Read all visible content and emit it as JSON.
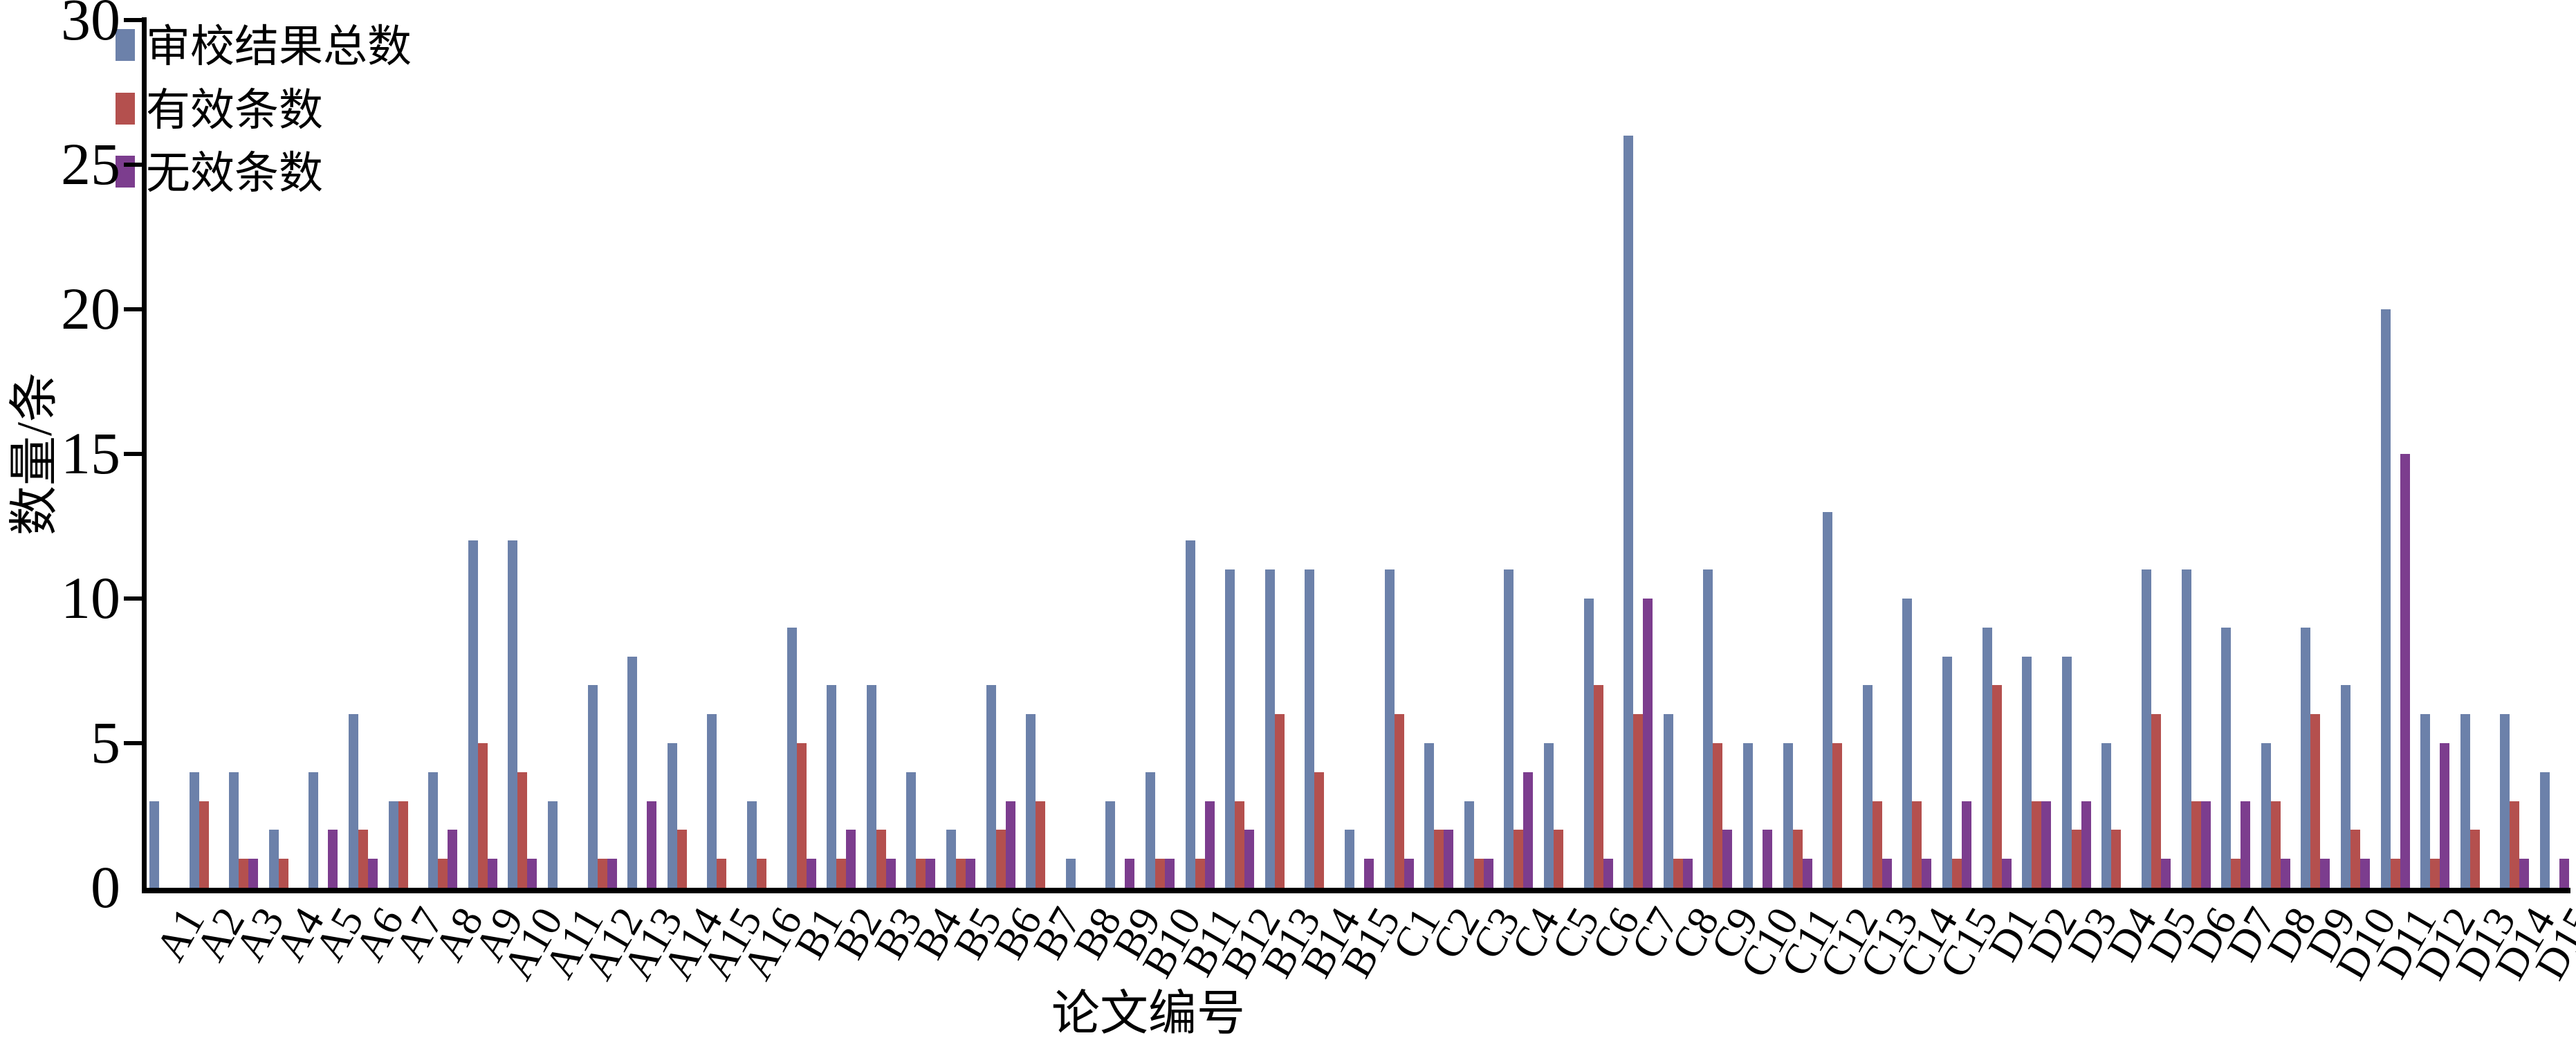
{
  "chart_data": {
    "type": "bar",
    "title": "",
    "xlabel": "论文编号",
    "ylabel": "数量/条",
    "ylim": [
      0,
      30
    ],
    "y_ticks": [
      0,
      5,
      10,
      15,
      20,
      25,
      30
    ],
    "grid": false,
    "legend_position": "top-left",
    "categories": [
      "A1",
      "A2",
      "A3",
      "A4",
      "A5",
      "A6",
      "A7",
      "A8",
      "A9",
      "A10",
      "A11",
      "A12",
      "A13",
      "A14",
      "A15",
      "A16",
      "B1",
      "B2",
      "B3",
      "B4",
      "B5",
      "B6",
      "B7",
      "B8",
      "B9",
      "B10",
      "B11",
      "B12",
      "B13",
      "B14",
      "B15",
      "C1",
      "C2",
      "C3",
      "C4",
      "C5",
      "C6",
      "C7",
      "C8",
      "C9",
      "C10",
      "C11",
      "C12",
      "C13",
      "C14",
      "C15",
      "D1",
      "D2",
      "D3",
      "D4",
      "D5",
      "D6",
      "D7",
      "D8",
      "D9",
      "D10",
      "D11",
      "D12",
      "D13",
      "D14",
      "D15"
    ],
    "series": [
      {
        "name": "审校结果总数",
        "color": "#6c81aa",
        "values": [
          3,
          4,
          4,
          2,
          4,
          6,
          3,
          4,
          12,
          12,
          3,
          7,
          8,
          5,
          6,
          3,
          9,
          7,
          7,
          4,
          2,
          7,
          6,
          1,
          3,
          4,
          12,
          11,
          11,
          11,
          2,
          11,
          5,
          3,
          11,
          5,
          10,
          26,
          6,
          11,
          5,
          5,
          13,
          7,
          10,
          8,
          9,
          8,
          8,
          5,
          11,
          11,
          9,
          5,
          9,
          7,
          20,
          6,
          6,
          6,
          4
        ]
      },
      {
        "name": "有效条数",
        "color": "#b4504e",
        "values": [
          0,
          3,
          1,
          1,
          0,
          2,
          3,
          1,
          5,
          4,
          0,
          1,
          0,
          2,
          1,
          1,
          5,
          1,
          2,
          1,
          1,
          2,
          3,
          0,
          0,
          1,
          1,
          3,
          6,
          4,
          0,
          6,
          2,
          1,
          2,
          2,
          7,
          6,
          1,
          5,
          0,
          2,
          5,
          3,
          3,
          1,
          7,
          3,
          2,
          2,
          6,
          3,
          1,
          3,
          6,
          2,
          1,
          1,
          2,
          3,
          0
        ]
      },
      {
        "name": "无效条数",
        "color": "#7c3d8e",
        "values": [
          0,
          0,
          1,
          0,
          2,
          1,
          0,
          2,
          1,
          1,
          0,
          1,
          3,
          0,
          0,
          0,
          1,
          2,
          1,
          1,
          1,
          3,
          0,
          0,
          1,
          1,
          3,
          2,
          0,
          0,
          1,
          1,
          2,
          1,
          4,
          0,
          1,
          10,
          1,
          2,
          2,
          1,
          0,
          1,
          1,
          3,
          1,
          3,
          3,
          0,
          1,
          3,
          3,
          1,
          1,
          1,
          15,
          5,
          0,
          1,
          1
        ]
      }
    ],
    "axis_color": "#000000"
  }
}
